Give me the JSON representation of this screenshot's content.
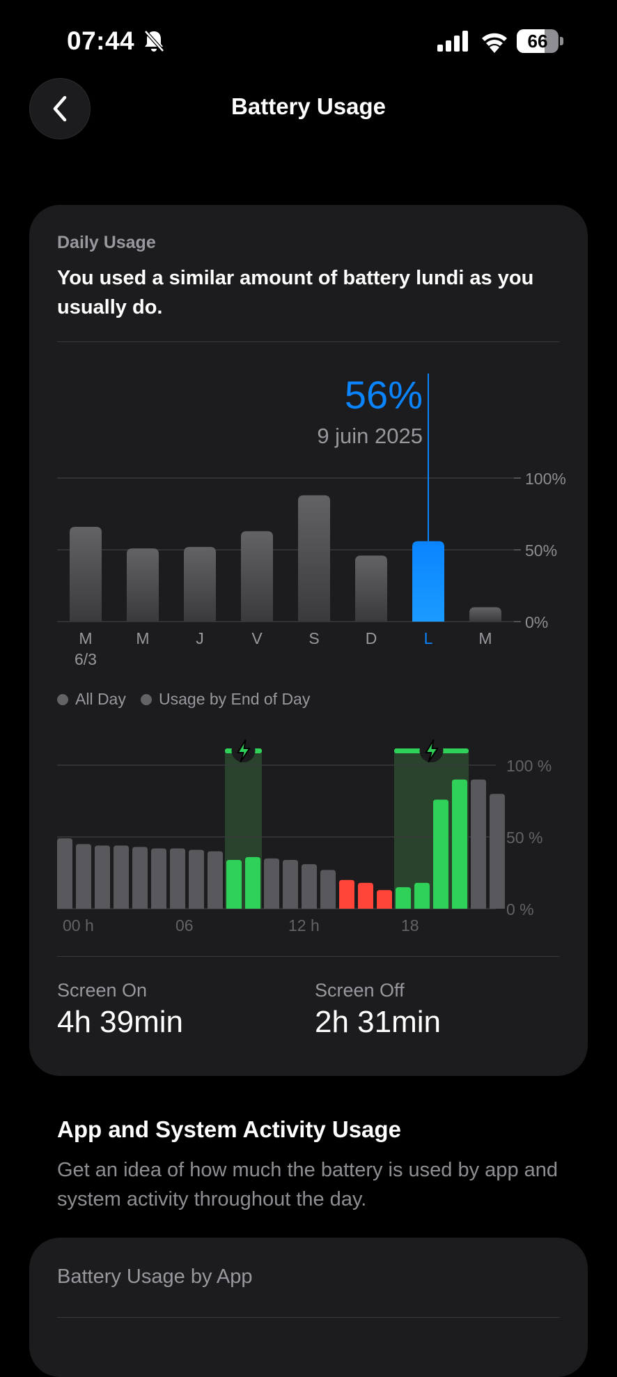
{
  "status_bar": {
    "time": "07:44",
    "battery_percent": "66",
    "battery_level": 0.66
  },
  "nav": {
    "title": "Battery Usage"
  },
  "daily_card": {
    "label": "Daily Usage",
    "summary": "You used a similar amount of battery lundi as you usually do.",
    "selected_value": "56%",
    "selected_date": "9 juin 2025",
    "legend": {
      "all_day": "All Day",
      "end_of_day": "Usage by End of Day"
    },
    "screen_on_label": "Screen On",
    "screen_on_value": "4h 39min",
    "screen_off_label": "Screen Off",
    "screen_off_value": "2h 31min"
  },
  "chart_data": [
    {
      "type": "bar",
      "categories": [
        "M",
        "M",
        "J",
        "V",
        "S",
        "D",
        "L",
        "M"
      ],
      "sublabels": [
        "6/3",
        "",
        "",
        "",
        "",
        "",
        "",
        ""
      ],
      "values": [
        66,
        51,
        52,
        63,
        88,
        46,
        56,
        10
      ],
      "selected_index": 6,
      "yticks": [
        "100%",
        "50%",
        "0%"
      ],
      "ylim": [
        0,
        100
      ],
      "colors": {
        "bar": "#5a5a5e",
        "selected": "#0a84ff",
        "grid": "#3a3a3c"
      }
    },
    {
      "type": "bar",
      "values": [
        49,
        45,
        44,
        44,
        43,
        42,
        42,
        41,
        40,
        34,
        36,
        35,
        34,
        31,
        27,
        20,
        18,
        13,
        15,
        18,
        76,
        90,
        90,
        80
      ],
      "bar_colors": [
        "gray",
        "gray",
        "gray",
        "gray",
        "gray",
        "gray",
        "gray",
        "gray",
        "gray",
        "green",
        "green",
        "gray",
        "gray",
        "gray",
        "gray",
        "red",
        "red",
        "red",
        "green",
        "green",
        "green",
        "green",
        "gray",
        "gray"
      ],
      "xticks": [
        "00 h",
        "06",
        "12 h",
        "18"
      ],
      "yticks": [
        "100 %",
        "50 %",
        "0 %"
      ],
      "ylim": [
        0,
        100
      ],
      "charging_periods": [
        [
          9,
          10
        ],
        [
          18,
          21
        ]
      ],
      "colors": {
        "gray": "#59595d",
        "green": "#30d158",
        "red": "#ff453a",
        "grid": "#3a3a3c",
        "charge_bg": "#2c4a30"
      }
    }
  ],
  "activity": {
    "title": "App and System Activity Usage",
    "description": "Get an idea of how much the battery is used by app and system activity throughout the day."
  },
  "by_app": {
    "title": "Battery Usage by App"
  }
}
